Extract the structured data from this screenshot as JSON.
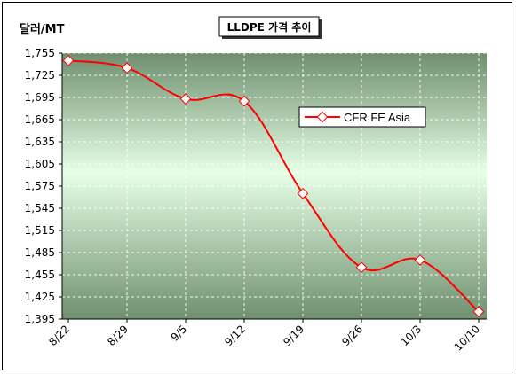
{
  "chart_data": {
    "type": "line",
    "title": "LLDPE 가격 추이",
    "ylabel": "달러/MT",
    "xlabel": "",
    "categories": [
      "8/22",
      "8/29",
      "9/5",
      "9/12",
      "9/19",
      "9/26",
      "10/3",
      "10/10"
    ],
    "series": [
      {
        "name": "CFR FE Asia",
        "values": [
          1745,
          1735,
          1693,
          1690,
          1565,
          1465,
          1475,
          1405
        ],
        "color": "#ff0000"
      }
    ],
    "yticks": [
      "1,755",
      "1,725",
      "1,695",
      "1,665",
      "1,635",
      "1,605",
      "1,575",
      "1,545",
      "1,515",
      "1,485",
      "1,455",
      "1,425",
      "1,395"
    ],
    "ylim": [
      1395,
      1755
    ],
    "grid": true,
    "legend_position": "top-right",
    "plot_gradient": [
      "#6f8f6f",
      "#e6ffe6",
      "#6f8f6f"
    ]
  }
}
